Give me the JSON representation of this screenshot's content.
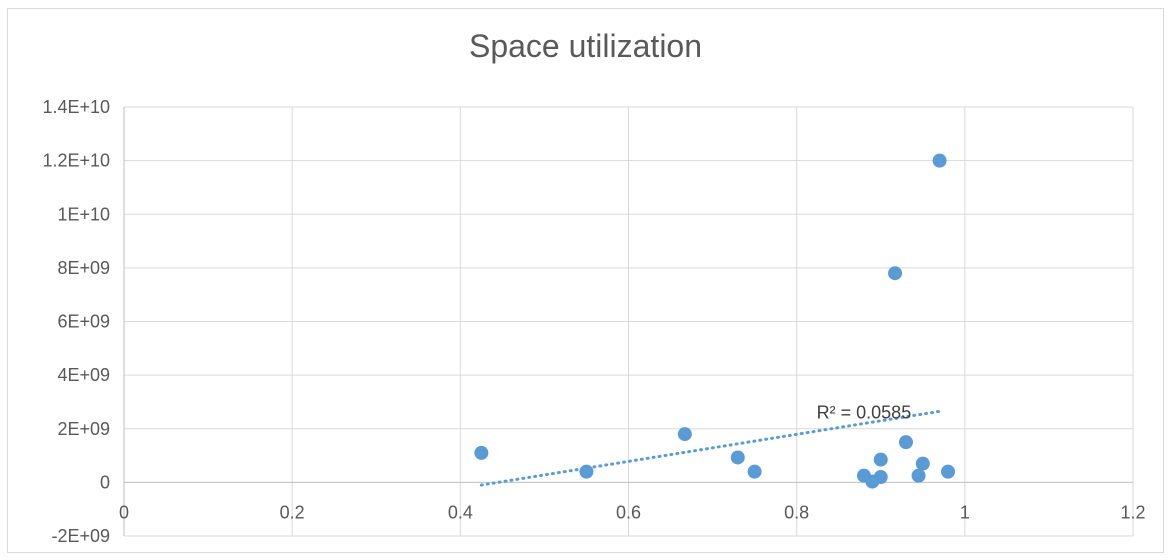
{
  "chart_data": {
    "type": "scatter",
    "title": "Space utilization",
    "xlabel": "",
    "ylabel": "",
    "xlim": [
      0,
      1.2
    ],
    "ylim": [
      -2000000000,
      14000000000
    ],
    "x_ticks": [
      0,
      0.2,
      0.4,
      0.6,
      0.8,
      1,
      1.2
    ],
    "x_tick_labels": [
      "0",
      "0.2",
      "0.4",
      "0.6",
      "0.8",
      "1",
      "1.2"
    ],
    "y_ticks": [
      -2000000000,
      0,
      2000000000,
      4000000000,
      6000000000,
      8000000000,
      10000000000,
      12000000000,
      14000000000
    ],
    "y_tick_labels": [
      "-2E+09",
      "0",
      "2E+09",
      "4E+09",
      "6E+09",
      "8E+09",
      "1E+10",
      "1.2E+10",
      "1.4E+10"
    ],
    "grid": true,
    "legend": "none",
    "marker_color": "#5b9bd5",
    "points": [
      {
        "x": 0.425,
        "y": 1100000000
      },
      {
        "x": 0.55,
        "y": 400000000
      },
      {
        "x": 0.667,
        "y": 1800000000
      },
      {
        "x": 0.73,
        "y": 930000000
      },
      {
        "x": 0.75,
        "y": 400000000
      },
      {
        "x": 0.88,
        "y": 250000000
      },
      {
        "x": 0.89,
        "y": 30000000
      },
      {
        "x": 0.9,
        "y": 850000000
      },
      {
        "x": 0.9,
        "y": 200000000
      },
      {
        "x": 0.917,
        "y": 7800000000
      },
      {
        "x": 0.93,
        "y": 1500000000
      },
      {
        "x": 0.945,
        "y": 250000000
      },
      {
        "x": 0.95,
        "y": 700000000
      },
      {
        "x": 0.97,
        "y": 12000000000
      },
      {
        "x": 0.98,
        "y": 400000000
      }
    ],
    "trendline": {
      "type": "linear",
      "style": "dotted",
      "x_range": [
        0.425,
        0.97
      ],
      "y_range": [
        -100000000,
        2650000000
      ],
      "label": "R² = 0.0585"
    }
  }
}
